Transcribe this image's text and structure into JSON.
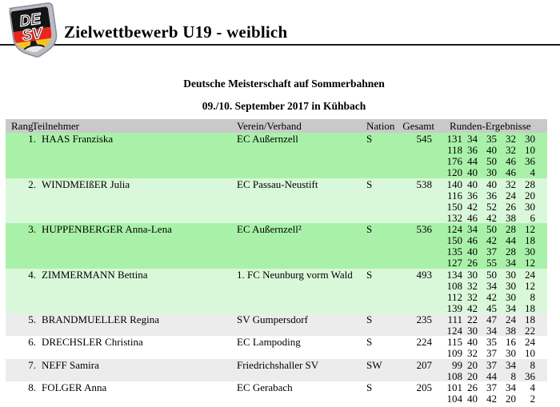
{
  "header": {
    "title": "Zielwettbewerb U19 - weiblich",
    "logo": {
      "top_letters": "DE",
      "bottom_letters": "SV"
    }
  },
  "subheader": {
    "line1": "Deutsche Meisterschaft auf Sommerbahnen",
    "line2": "09./10. September 2017 in Kühbach"
  },
  "table": {
    "columns": {
      "rang": "Rang",
      "teilnehmer": "Teilnehmer",
      "verein": "Verein/Verband",
      "nation": "Nation",
      "gesamt": "Gesamt",
      "runden": "Runden-Ergebnisse"
    },
    "rows": [
      {
        "rank": "1.",
        "name": "HAAS Franziska",
        "club": "EC Außernzell",
        "nation": "S",
        "total": "545",
        "rounds": [
          [
            "131",
            "34",
            "35",
            "32",
            "30"
          ],
          [
            "118",
            "36",
            "40",
            "32",
            "10"
          ],
          [
            "176",
            "44",
            "50",
            "46",
            "36"
          ],
          [
            "120",
            "40",
            "30",
            "46",
            "4"
          ]
        ],
        "highlight": "green-a"
      },
      {
        "rank": "2.",
        "name": "WINDMEIßER Julia",
        "club": "EC Passau-Neustift",
        "nation": "S",
        "total": "538",
        "rounds": [
          [
            "140",
            "40",
            "40",
            "32",
            "28"
          ],
          [
            "116",
            "36",
            "36",
            "24",
            "20"
          ],
          [
            "150",
            "42",
            "52",
            "26",
            "30"
          ],
          [
            "132",
            "46",
            "42",
            "38",
            "6"
          ]
        ],
        "highlight": "green-b"
      },
      {
        "rank": "3.",
        "name": "HUPPENBERGER Anna-Lena",
        "club": "EC Außernzell²",
        "nation": "S",
        "total": "536",
        "rounds": [
          [
            "124",
            "34",
            "50",
            "28",
            "12"
          ],
          [
            "150",
            "46",
            "42",
            "44",
            "18"
          ],
          [
            "135",
            "40",
            "37",
            "28",
            "30"
          ],
          [
            "127",
            "26",
            "55",
            "34",
            "12"
          ]
        ],
        "highlight": "green-a"
      },
      {
        "rank": "4.",
        "name": "ZIMMERMANN Bettina",
        "club": "1. FC Neunburg vorm Wald",
        "nation": "S",
        "total": "493",
        "rounds": [
          [
            "134",
            "30",
            "50",
            "30",
            "24"
          ],
          [
            "108",
            "32",
            "34",
            "30",
            "12"
          ],
          [
            "112",
            "32",
            "42",
            "30",
            "8"
          ],
          [
            "139",
            "42",
            "45",
            "34",
            "18"
          ]
        ],
        "highlight": "green-b"
      },
      {
        "rank": "5.",
        "name": "BRANDMUELLER Regina",
        "club": "SV Gumpersdorf",
        "nation": "S",
        "total": "235",
        "rounds": [
          [
            "111",
            "22",
            "47",
            "24",
            "18"
          ],
          [
            "124",
            "30",
            "34",
            "38",
            "22"
          ]
        ],
        "highlight": "gray"
      },
      {
        "rank": "6.",
        "name": "DRECHSLER Christina",
        "club": "EC Lampoding",
        "nation": "S",
        "total": "224",
        "rounds": [
          [
            "115",
            "40",
            "35",
            "16",
            "24"
          ],
          [
            "109",
            "32",
            "37",
            "30",
            "10"
          ]
        ],
        "highlight": "white"
      },
      {
        "rank": "7.",
        "name": "NEFF Samira",
        "club": "Friedrichshaller SV",
        "nation": "SW",
        "total": "207",
        "rounds": [
          [
            "99",
            "20",
            "37",
            "34",
            "8"
          ],
          [
            "108",
            "20",
            "44",
            "8",
            "36"
          ]
        ],
        "highlight": "gray"
      },
      {
        "rank": "8.",
        "name": "FOLGER Anna",
        "club": "EC Gerabach",
        "nation": "S",
        "total": "205",
        "rounds": [
          [
            "101",
            "26",
            "37",
            "34",
            "4"
          ],
          [
            "104",
            "40",
            "42",
            "20",
            "2"
          ]
        ],
        "highlight": "white"
      }
    ]
  },
  "colors": {
    "row_green": "#a9f1a9",
    "row_green_light": "#d9f8d9",
    "row_gray": "#ececec",
    "table_header_gray": "#c9c9c9",
    "logo_black": "#141414",
    "logo_red": "#e8251f",
    "logo_gold": "#f7c21e",
    "logo_silver": "#b9bcc4"
  }
}
